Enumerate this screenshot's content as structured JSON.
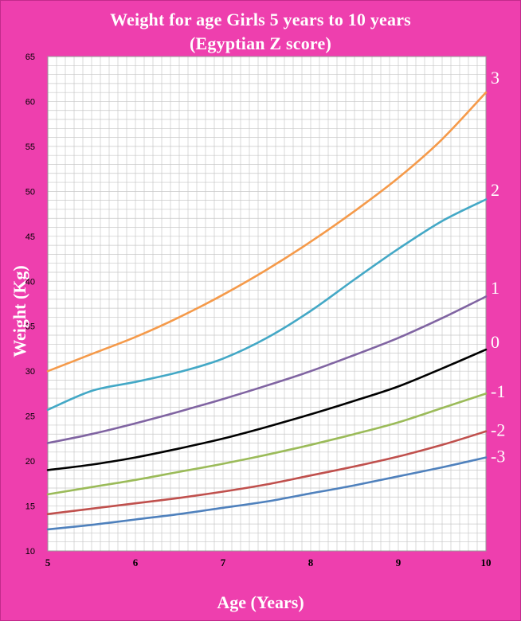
{
  "colors": {
    "background": "#ee3fae",
    "plot_area": "#ffffff",
    "grid": "#c8c8c8",
    "title_text": "#ffffff",
    "tick_text": "#000000",
    "zlabel_text": "#ffffff"
  },
  "chart_data": {
    "type": "line",
    "title": [
      "Weight for age Girls 5 years to 10 years",
      "(Egyptian Z score)"
    ],
    "xlabel": "Age (Years)",
    "ylabel": "Weight (Kg)",
    "xlim": [
      5,
      10
    ],
    "ylim": [
      10,
      65
    ],
    "x_ticks": [
      5,
      6,
      7,
      8,
      9,
      10
    ],
    "y_ticks": [
      10,
      15,
      20,
      25,
      30,
      35,
      40,
      45,
      50,
      55,
      60,
      65
    ],
    "grid": true,
    "x_minor_step": 0.1,
    "y_minor_step": 1,
    "x": [
      5,
      5.5,
      6,
      6.5,
      7,
      7.5,
      8,
      8.5,
      9,
      9.5,
      10
    ],
    "series": [
      {
        "name": "3",
        "color": "#f59a4a",
        "label_weight": 62.7,
        "values": [
          30.0,
          31.9,
          33.8,
          36.0,
          38.5,
          41.3,
          44.4,
          47.8,
          51.5,
          55.8,
          61.0
        ]
      },
      {
        "name": "2",
        "color": "#43a8c6",
        "label_weight": 50.2,
        "values": [
          25.7,
          27.8,
          28.8,
          29.9,
          31.4,
          33.7,
          36.7,
          40.2,
          43.6,
          46.7,
          49.1
        ]
      },
      {
        "name": "1",
        "color": "#8064a2",
        "label_weight": 39.3,
        "values": [
          22.0,
          23.0,
          24.2,
          25.5,
          26.9,
          28.4,
          30.0,
          31.8,
          33.7,
          35.9,
          38.3
        ]
      },
      {
        "name": "0",
        "color": "#000000",
        "label_weight": 33.3,
        "values": [
          19.0,
          19.6,
          20.4,
          21.4,
          22.5,
          23.8,
          25.2,
          26.7,
          28.3,
          30.3,
          32.4
        ]
      },
      {
        "name": "-1",
        "color": "#9bbb59",
        "label_weight": 27.8,
        "values": [
          16.3,
          17.1,
          17.9,
          18.8,
          19.7,
          20.7,
          21.8,
          23.0,
          24.3,
          25.9,
          27.5
        ]
      },
      {
        "name": "-2",
        "color": "#c0504d",
        "label_weight": 23.5,
        "values": [
          14.1,
          14.7,
          15.3,
          15.9,
          16.6,
          17.4,
          18.4,
          19.4,
          20.5,
          21.8,
          23.3
        ]
      },
      {
        "name": "-3",
        "color": "#4f81bd",
        "label_weight": 20.6,
        "values": [
          12.4,
          12.9,
          13.5,
          14.1,
          14.8,
          15.5,
          16.4,
          17.3,
          18.3,
          19.3,
          20.4
        ]
      }
    ]
  }
}
